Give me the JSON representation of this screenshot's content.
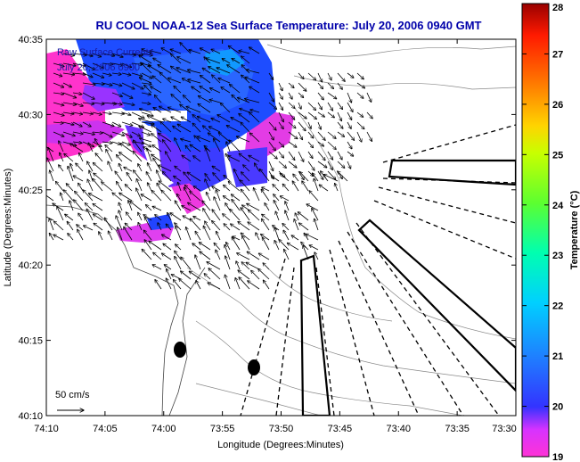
{
  "title": "RU COOL  NOAA-12  Sea Surface Temperature:  July 20, 2006 0940 GMT",
  "inset": {
    "line1": "Raw Surface Currents",
    "line2": "July 20, 2006 0900"
  },
  "scale_label": "50 cm/s",
  "x_axis": {
    "label": "Longitude (Degrees:Minutes)",
    "ticks": [
      "74:10",
      "74:05",
      "74:00",
      "73:55",
      "73:50",
      "73:45",
      "73:40",
      "73:35",
      "73:30"
    ]
  },
  "y_axis": {
    "label": "Latitude (Degrees:Minutes)",
    "ticks": [
      "40:35",
      "40:30",
      "40:25",
      "40:20",
      "40:15",
      "40:10"
    ]
  },
  "colorbar": {
    "label": "Temperature (°C)",
    "ticks": [
      "28",
      "27",
      "26",
      "25",
      "24",
      "23",
      "22",
      "21",
      "20",
      "19"
    ],
    "min": 19,
    "max": 28
  },
  "colors": {
    "title": "#0000aa",
    "inset_text": "#1a1aa0",
    "warm_water": "#ff33cc",
    "cool_water": "#1e4dff"
  },
  "icons": {
    "current_arrow": "arrow-icon",
    "buoy": "filled-ellipse"
  }
}
